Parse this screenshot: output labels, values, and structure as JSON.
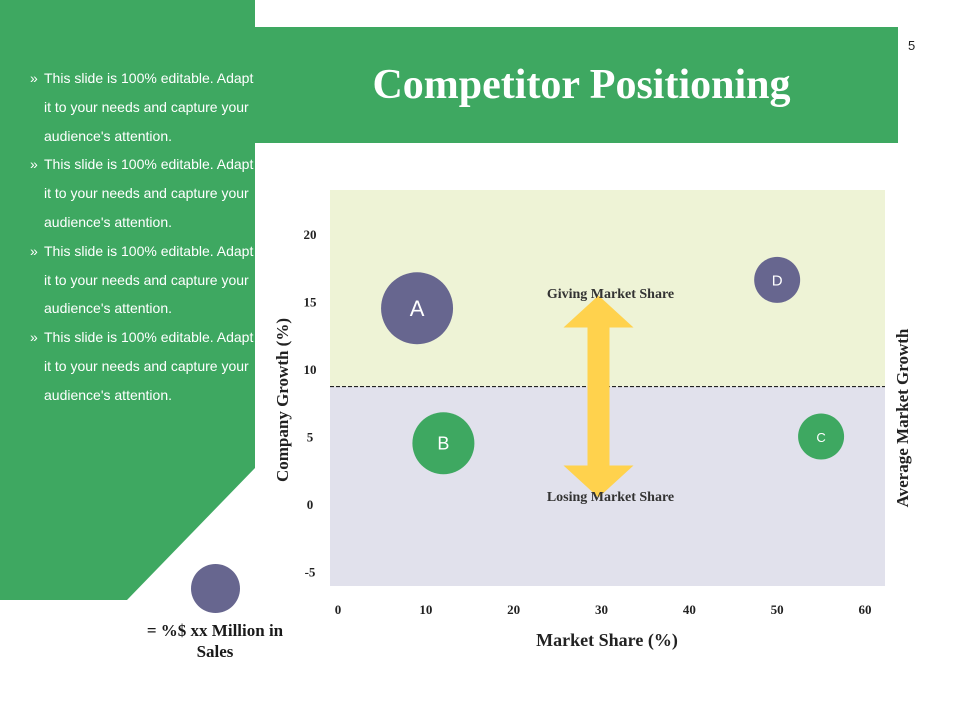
{
  "page_number": "5",
  "title": "Competitor Positioning",
  "bullets": [
    "This slide is 100% editable. Adapt it to your needs and capture your audience's attention.",
    "This slide is 100% editable. Adapt it to your needs and capture your audience's attention.",
    "This slide is 100% editable. Adapt it to your needs and capture your audience's attention.",
    "This slide is 100% editable. Adapt it to your needs and capture your audience's attention."
  ],
  "bullet_symbol": "»",
  "legend": {
    "text": "= %$ xx Million in Sales",
    "color": "#67668f"
  },
  "colors": {
    "green": "#3ea861",
    "purple": "#67668f",
    "upper_region": "#eef3d6",
    "lower_region": "#e1e1ec",
    "arrow": "#ffd24d"
  },
  "chart_data": {
    "type": "scatter",
    "xlabel": "Market Share (%)",
    "ylabel": "Company Growth (%)",
    "right_label": "Average Market Growth",
    "x_ticks": [
      0,
      10,
      20,
      30,
      40,
      50,
      60
    ],
    "y_ticks": [
      -5,
      0,
      5,
      10,
      15,
      20
    ],
    "xlim": [
      -1,
      61
    ],
    "ylim": [
      -6,
      24
    ],
    "average_line_y": 8.7,
    "annotations": [
      {
        "text": "Giving Market Share",
        "x": 30,
        "y": 16
      },
      {
        "text": "Losing Market Share",
        "x": 30,
        "y": 0.5
      }
    ],
    "arrow": {
      "x": 30,
      "y_from": 3.3,
      "y_to": 15
    },
    "points": [
      {
        "label": "A",
        "x": 9,
        "y": 14.5,
        "size": "large",
        "color": "#67668f"
      },
      {
        "label": "B",
        "x": 12,
        "y": 4.5,
        "size": "medium",
        "color": "#3ea861"
      },
      {
        "label": "C",
        "x": 55,
        "y": 5,
        "size": "small",
        "color": "#3ea861"
      },
      {
        "label": "D",
        "x": 50,
        "y": 16.6,
        "size": "small",
        "color": "#67668f"
      }
    ]
  }
}
